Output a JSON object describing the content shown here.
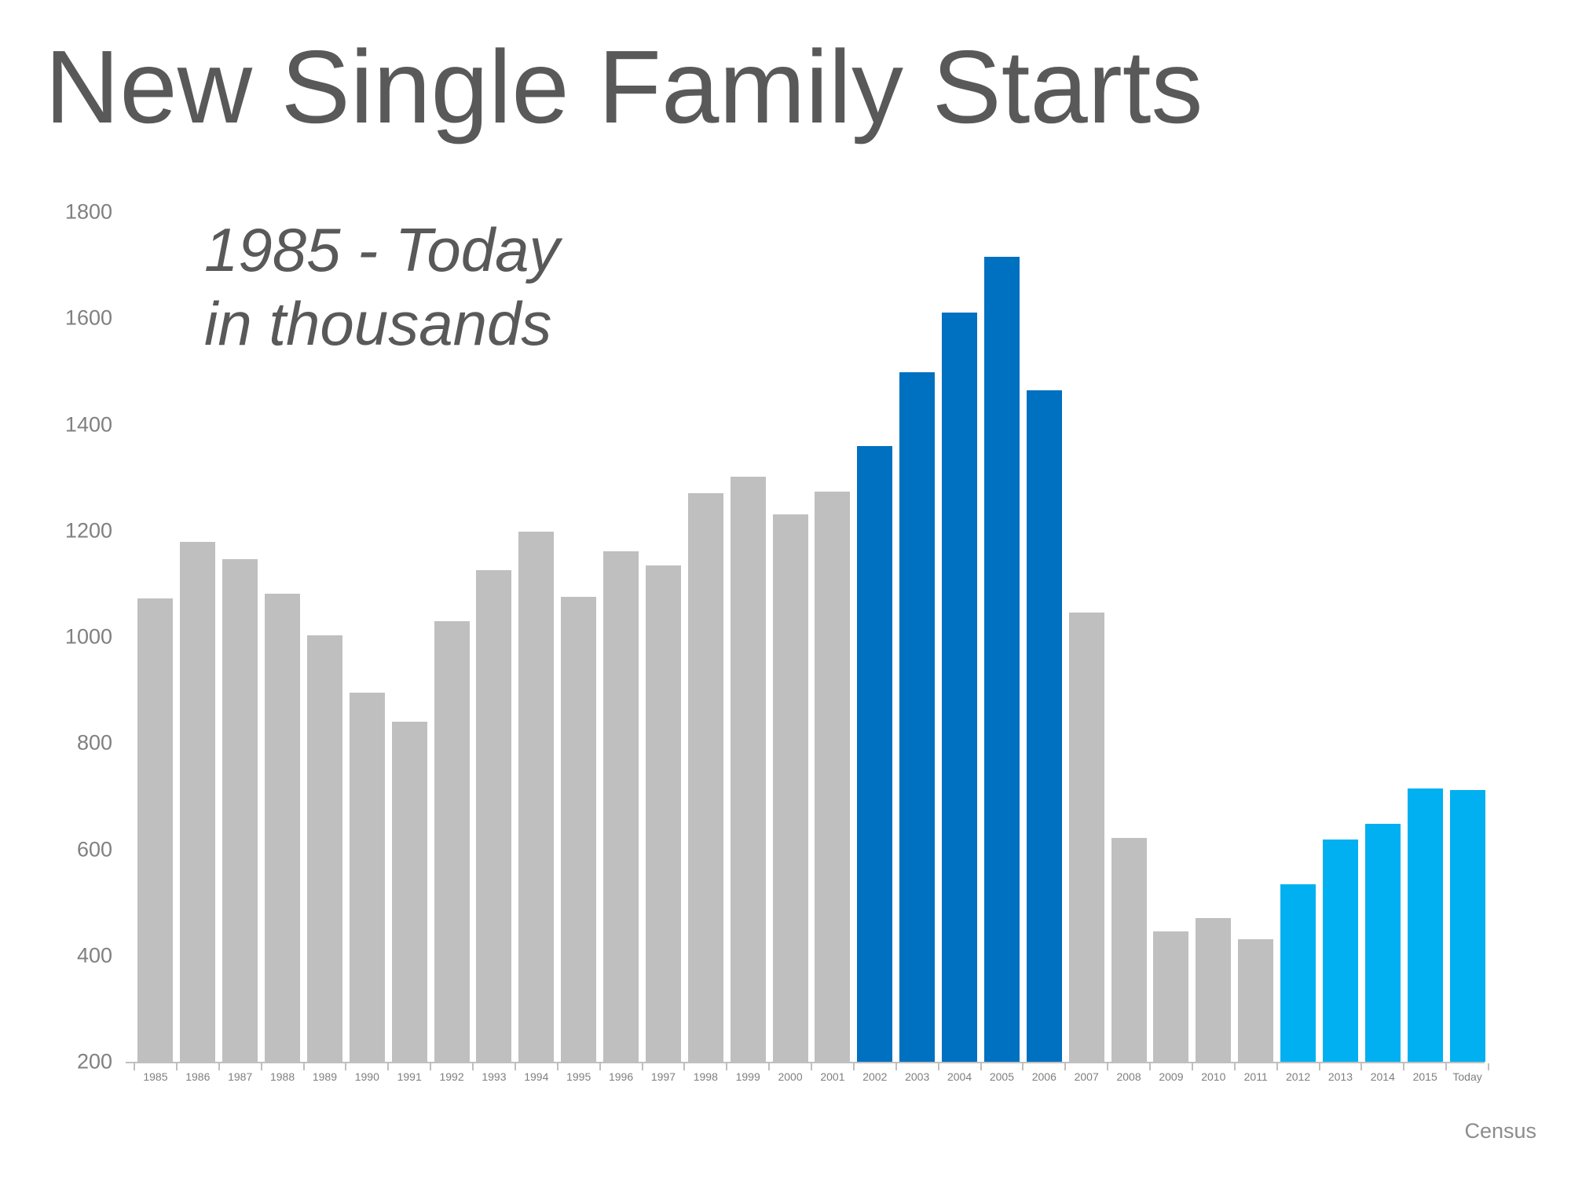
{
  "title": "New Single Family Starts",
  "subtitle_line1": "1985 - Today",
  "subtitle_line2": "in thousands",
  "source": "Census",
  "colors": {
    "bar_gray": "#bfbfbf",
    "bar_dark_blue": "#0070c0",
    "bar_light_blue": "#00b0f0",
    "title_text": "#595959",
    "axis_text": "#808080",
    "axis_line": "#bfbfbf"
  },
  "chart_data": {
    "type": "bar",
    "title": "New Single Family Starts",
    "subtitle": "1985 - Today in thousands",
    "xlabel": "",
    "ylabel": "",
    "ylim": [
      200,
      1800
    ],
    "yticks": [
      200,
      400,
      600,
      800,
      1000,
      1200,
      1400,
      1600,
      1800
    ],
    "grid": false,
    "legend": "none",
    "source": "Census",
    "categories": [
      "1985",
      "1986",
      "1987",
      "1988",
      "1989",
      "1990",
      "1991",
      "1992",
      "1993",
      "1994",
      "1995",
      "1996",
      "1997",
      "1998",
      "1999",
      "2000",
      "2001",
      "2002",
      "2003",
      "2004",
      "2005",
      "2006",
      "2007",
      "2008",
      "2009",
      "2010",
      "2011",
      "2012",
      "2013",
      "2014",
      "2015",
      "Today"
    ],
    "values": [
      1072,
      1179,
      1146,
      1081,
      1003,
      895,
      840,
      1030,
      1126,
      1198,
      1076,
      1161,
      1134,
      1271,
      1302,
      1231,
      1273,
      1359,
      1499,
      1611,
      1716,
      1465,
      1046,
      622,
      445,
      471,
      431,
      535,
      618,
      648,
      715,
      711
    ],
    "bar_colors": [
      "#bfbfbf",
      "#bfbfbf",
      "#bfbfbf",
      "#bfbfbf",
      "#bfbfbf",
      "#bfbfbf",
      "#bfbfbf",
      "#bfbfbf",
      "#bfbfbf",
      "#bfbfbf",
      "#bfbfbf",
      "#bfbfbf",
      "#bfbfbf",
      "#bfbfbf",
      "#bfbfbf",
      "#bfbfbf",
      "#bfbfbf",
      "#0070c0",
      "#0070c0",
      "#0070c0",
      "#0070c0",
      "#0070c0",
      "#bfbfbf",
      "#bfbfbf",
      "#bfbfbf",
      "#bfbfbf",
      "#bfbfbf",
      "#00b0f0",
      "#00b0f0",
      "#00b0f0",
      "#00b0f0",
      "#00b0f0"
    ],
    "color_groups": [
      {
        "range": "1985-2001",
        "color": "#bfbfbf"
      },
      {
        "range": "2002-2006",
        "color": "#0070c0"
      },
      {
        "range": "2007-2011",
        "color": "#bfbfbf"
      },
      {
        "range": "2012-Today",
        "color": "#00b0f0"
      }
    ]
  }
}
